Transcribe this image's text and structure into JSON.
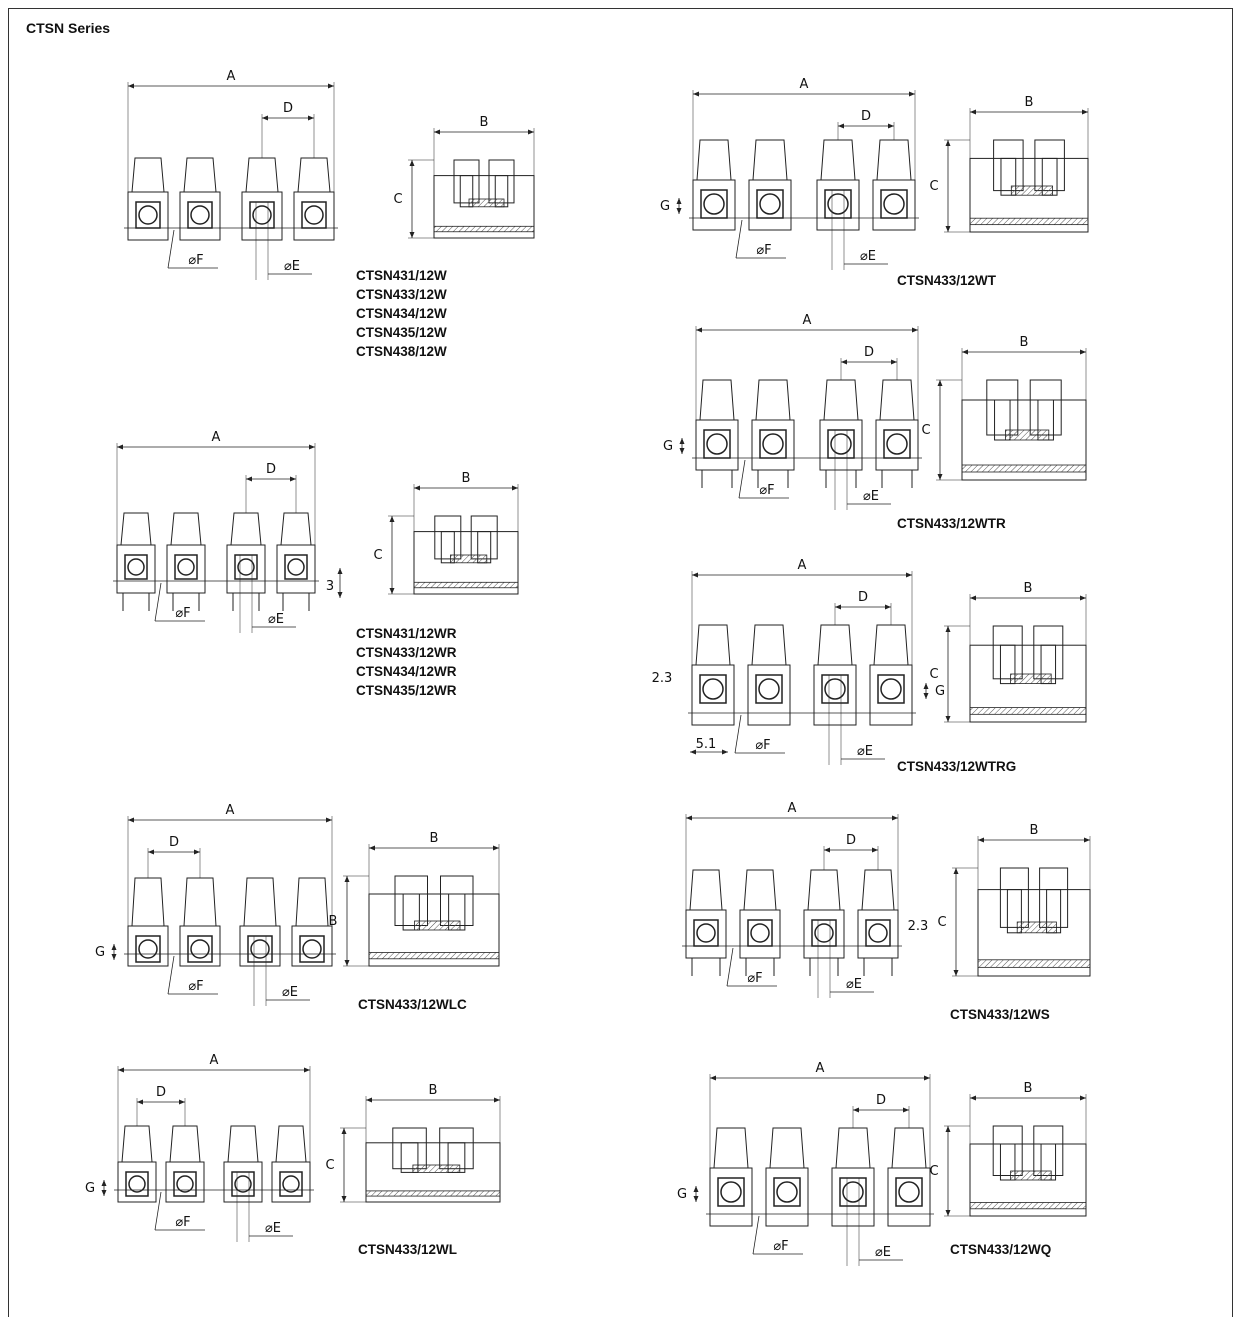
{
  "page": {
    "series_title": "CTSN Series"
  },
  "labels": {
    "A": "A",
    "B": "B",
    "C": "C",
    "D": "D",
    "E": "⌀E",
    "F": "⌀F",
    "G": "G",
    "three": "3",
    "two_three": "2.3",
    "five_one": "5.1"
  },
  "variants": {
    "w": [
      "CTSN431/12W",
      "CTSN433/12W",
      "CTSN434/12W",
      "CTSN435/12W",
      "CTSN438/12W"
    ],
    "wr": [
      "CTSN431/12WR",
      "CTSN433/12WR",
      "CTSN434/12WR",
      "CTSN435/12WR"
    ],
    "wlc": "CTSN433/12WLC",
    "wl": "CTSN433/12WL",
    "wt": "CTSN433/12WT",
    "wtr": "CTSN433/12WTR",
    "wtrg": "CTSN433/12WTRG",
    "ws": "CTSN433/12WS",
    "wq": "CTSN433/12WQ"
  },
  "colors": {
    "ink": "#222222",
    "hatch": "#555555"
  }
}
